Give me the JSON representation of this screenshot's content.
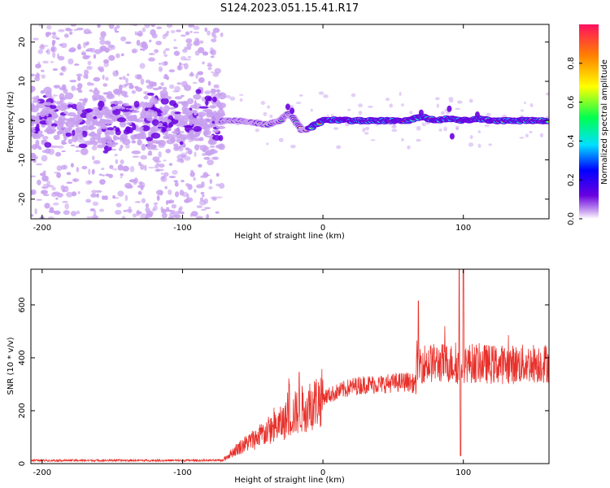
{
  "figure": {
    "title": "S124.2023.051.15.41.R17"
  },
  "chart_data": [
    {
      "type": "heatmap",
      "xlabel": "Height of straight line (km)",
      "ylabel": "Frequency (Hz)",
      "xlim": [
        -208,
        161
      ],
      "ylim": [
        -25,
        24.5
      ],
      "xticks": [
        -200,
        -100,
        0,
        100
      ],
      "yticks": [
        -20,
        -10,
        0,
        10,
        20
      ],
      "colorbar": {
        "label": "Normalized spectral amplitude",
        "range": [
          0,
          1
        ],
        "ticks": [
          0.0,
          0.2,
          0.4,
          0.6,
          0.8
        ],
        "colormap": [
          "#ffffff",
          "#c8a0f0",
          "#6a00e0",
          "#0000ff",
          "#00e0ff",
          "#00ff50",
          "#ffff00",
          "#ff8000",
          "#ff1060"
        ]
      },
      "ridge": {
        "description_points_x": [
          -70,
          -60,
          -50,
          -40,
          -30,
          -25,
          -20,
          -15,
          -10,
          -5,
          0,
          10,
          20,
          40,
          60,
          70,
          80,
          90,
          100,
          110,
          120,
          140,
          160
        ],
        "description_points_f": [
          0,
          0,
          -0.5,
          -1,
          0,
          2,
          0,
          -2.5,
          -2.2,
          -1,
          0,
          0.2,
          0,
          0,
          0,
          1,
          0,
          0.5,
          0,
          0.5,
          0,
          0,
          0
        ]
      },
      "grid": false
    },
    {
      "type": "line",
      "xlabel": "Height of straight line (km)",
      "ylabel": "SNR (10 * v/v)",
      "xlim": [
        -208,
        161
      ],
      "ylim": [
        0,
        735
      ],
      "xticks": [
        -200,
        -100,
        0,
        100
      ],
      "yticks": [
        0,
        200,
        400,
        600
      ],
      "color": "#e8302a",
      "envelope": {
        "x": [
          -208,
          -72,
          -65,
          -60,
          -50,
          -40,
          -30,
          -20,
          -10,
          0,
          10,
          20,
          30,
          40,
          50,
          60,
          66,
          67,
          70,
          80,
          90,
          97,
          100,
          110,
          120,
          130,
          140,
          150,
          161
        ],
        "y": [
          10,
          10,
          40,
          60,
          90,
          120,
          150,
          190,
          220,
          250,
          270,
          290,
          300,
          300,
          305,
          310,
          300,
          370,
          380,
          380,
          380,
          370,
          380,
          380,
          375,
          375,
          375,
          380,
          380
        ]
      },
      "spikes": [
        {
          "x": 68,
          "y": 615
        },
        {
          "x": 97,
          "y": 735
        },
        {
          "x": 98,
          "y": 30
        },
        {
          "x": 100,
          "y": 735
        },
        {
          "x": -17,
          "y": 345
        },
        {
          "x": -24,
          "y": 300
        }
      ],
      "grid": false
    }
  ]
}
